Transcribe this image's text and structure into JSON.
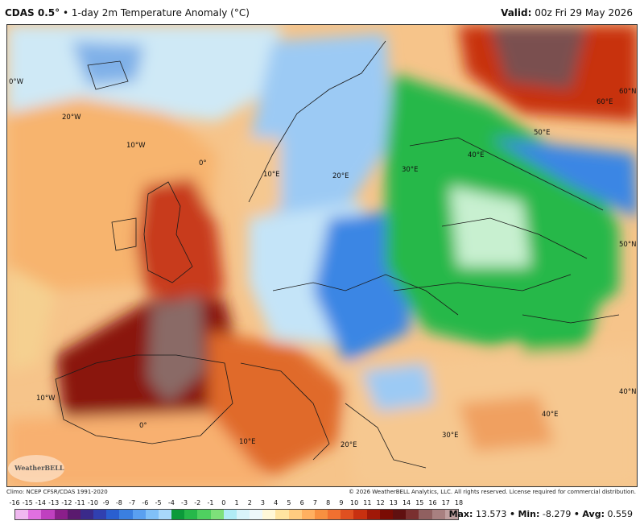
{
  "header": {
    "product": "CDAS 0.5°",
    "separator": "•",
    "title": "1-day 2m Temperature Anomaly (°C)",
    "valid_label": "Valid:",
    "valid_time": "00z Fri 29 May 2026"
  },
  "map": {
    "labels": [
      {
        "text": "0°W"
      },
      {
        "text": "20°W"
      },
      {
        "text": "10°W"
      },
      {
        "text": "0°"
      },
      {
        "text": "10°E"
      },
      {
        "text": "20°E"
      },
      {
        "text": "30°E"
      },
      {
        "text": "40°E"
      },
      {
        "text": "50°E"
      },
      {
        "text": "60°E"
      },
      {
        "text": "60°N"
      },
      {
        "text": "50°N"
      },
      {
        "text": "40°N"
      },
      {
        "text": "40°E"
      },
      {
        "text": "30°E"
      },
      {
        "text": "20°E"
      },
      {
        "text": "10°E"
      },
      {
        "text": "10°W"
      },
      {
        "text": "0°"
      }
    ]
  },
  "footer": {
    "climo": "Climo: NCEP CFSR/CDAS 1991-2020",
    "copyright": "© 2026 WeatherBELL Analytics, LLC. All rights reserved. License required for commercial distribution.",
    "logo_text": "WeatherBELL"
  },
  "colorbar": {
    "ticks": [
      "-16",
      "-15",
      "-14",
      "-13",
      "-12",
      "-11",
      "-10",
      "-9",
      "-8",
      "-7",
      "-6",
      "-5",
      "-4",
      "-3",
      "-2",
      "-1",
      "0",
      "1",
      "2",
      "3",
      "4",
      "5",
      "6",
      "7",
      "8",
      "9",
      "10",
      "11",
      "12",
      "13",
      "14",
      "15",
      "16",
      "17",
      "18"
    ],
    "colors": [
      "#f0b8f0",
      "#e070e0",
      "#c040c0",
      "#8a1f8a",
      "#5a1a6e",
      "#3a2a8a",
      "#3040b0",
      "#2a5fd0",
      "#3a7fe0",
      "#5aa0f0",
      "#80c0f8",
      "#a8d8fb",
      "#0b9a3a",
      "#26b84a",
      "#4fd060",
      "#7ee07a",
      "#b0ecf5",
      "#d8f4fa",
      "#eef8fa",
      "#fff8d8",
      "#ffe4a0",
      "#ffcc80",
      "#ffb060",
      "#f89040",
      "#f07030",
      "#e05020",
      "#c83010",
      "#a01808",
      "#7a0c04",
      "#601010",
      "#7a3030",
      "#906060",
      "#a88080",
      "#c0a0a0"
    ]
  },
  "stats": {
    "max_label": "Max:",
    "max": "13.573",
    "min_label": "Min:",
    "min": "-8.279",
    "avg_label": "Avg:",
    "avg": "0.559",
    "sep": "•"
  }
}
